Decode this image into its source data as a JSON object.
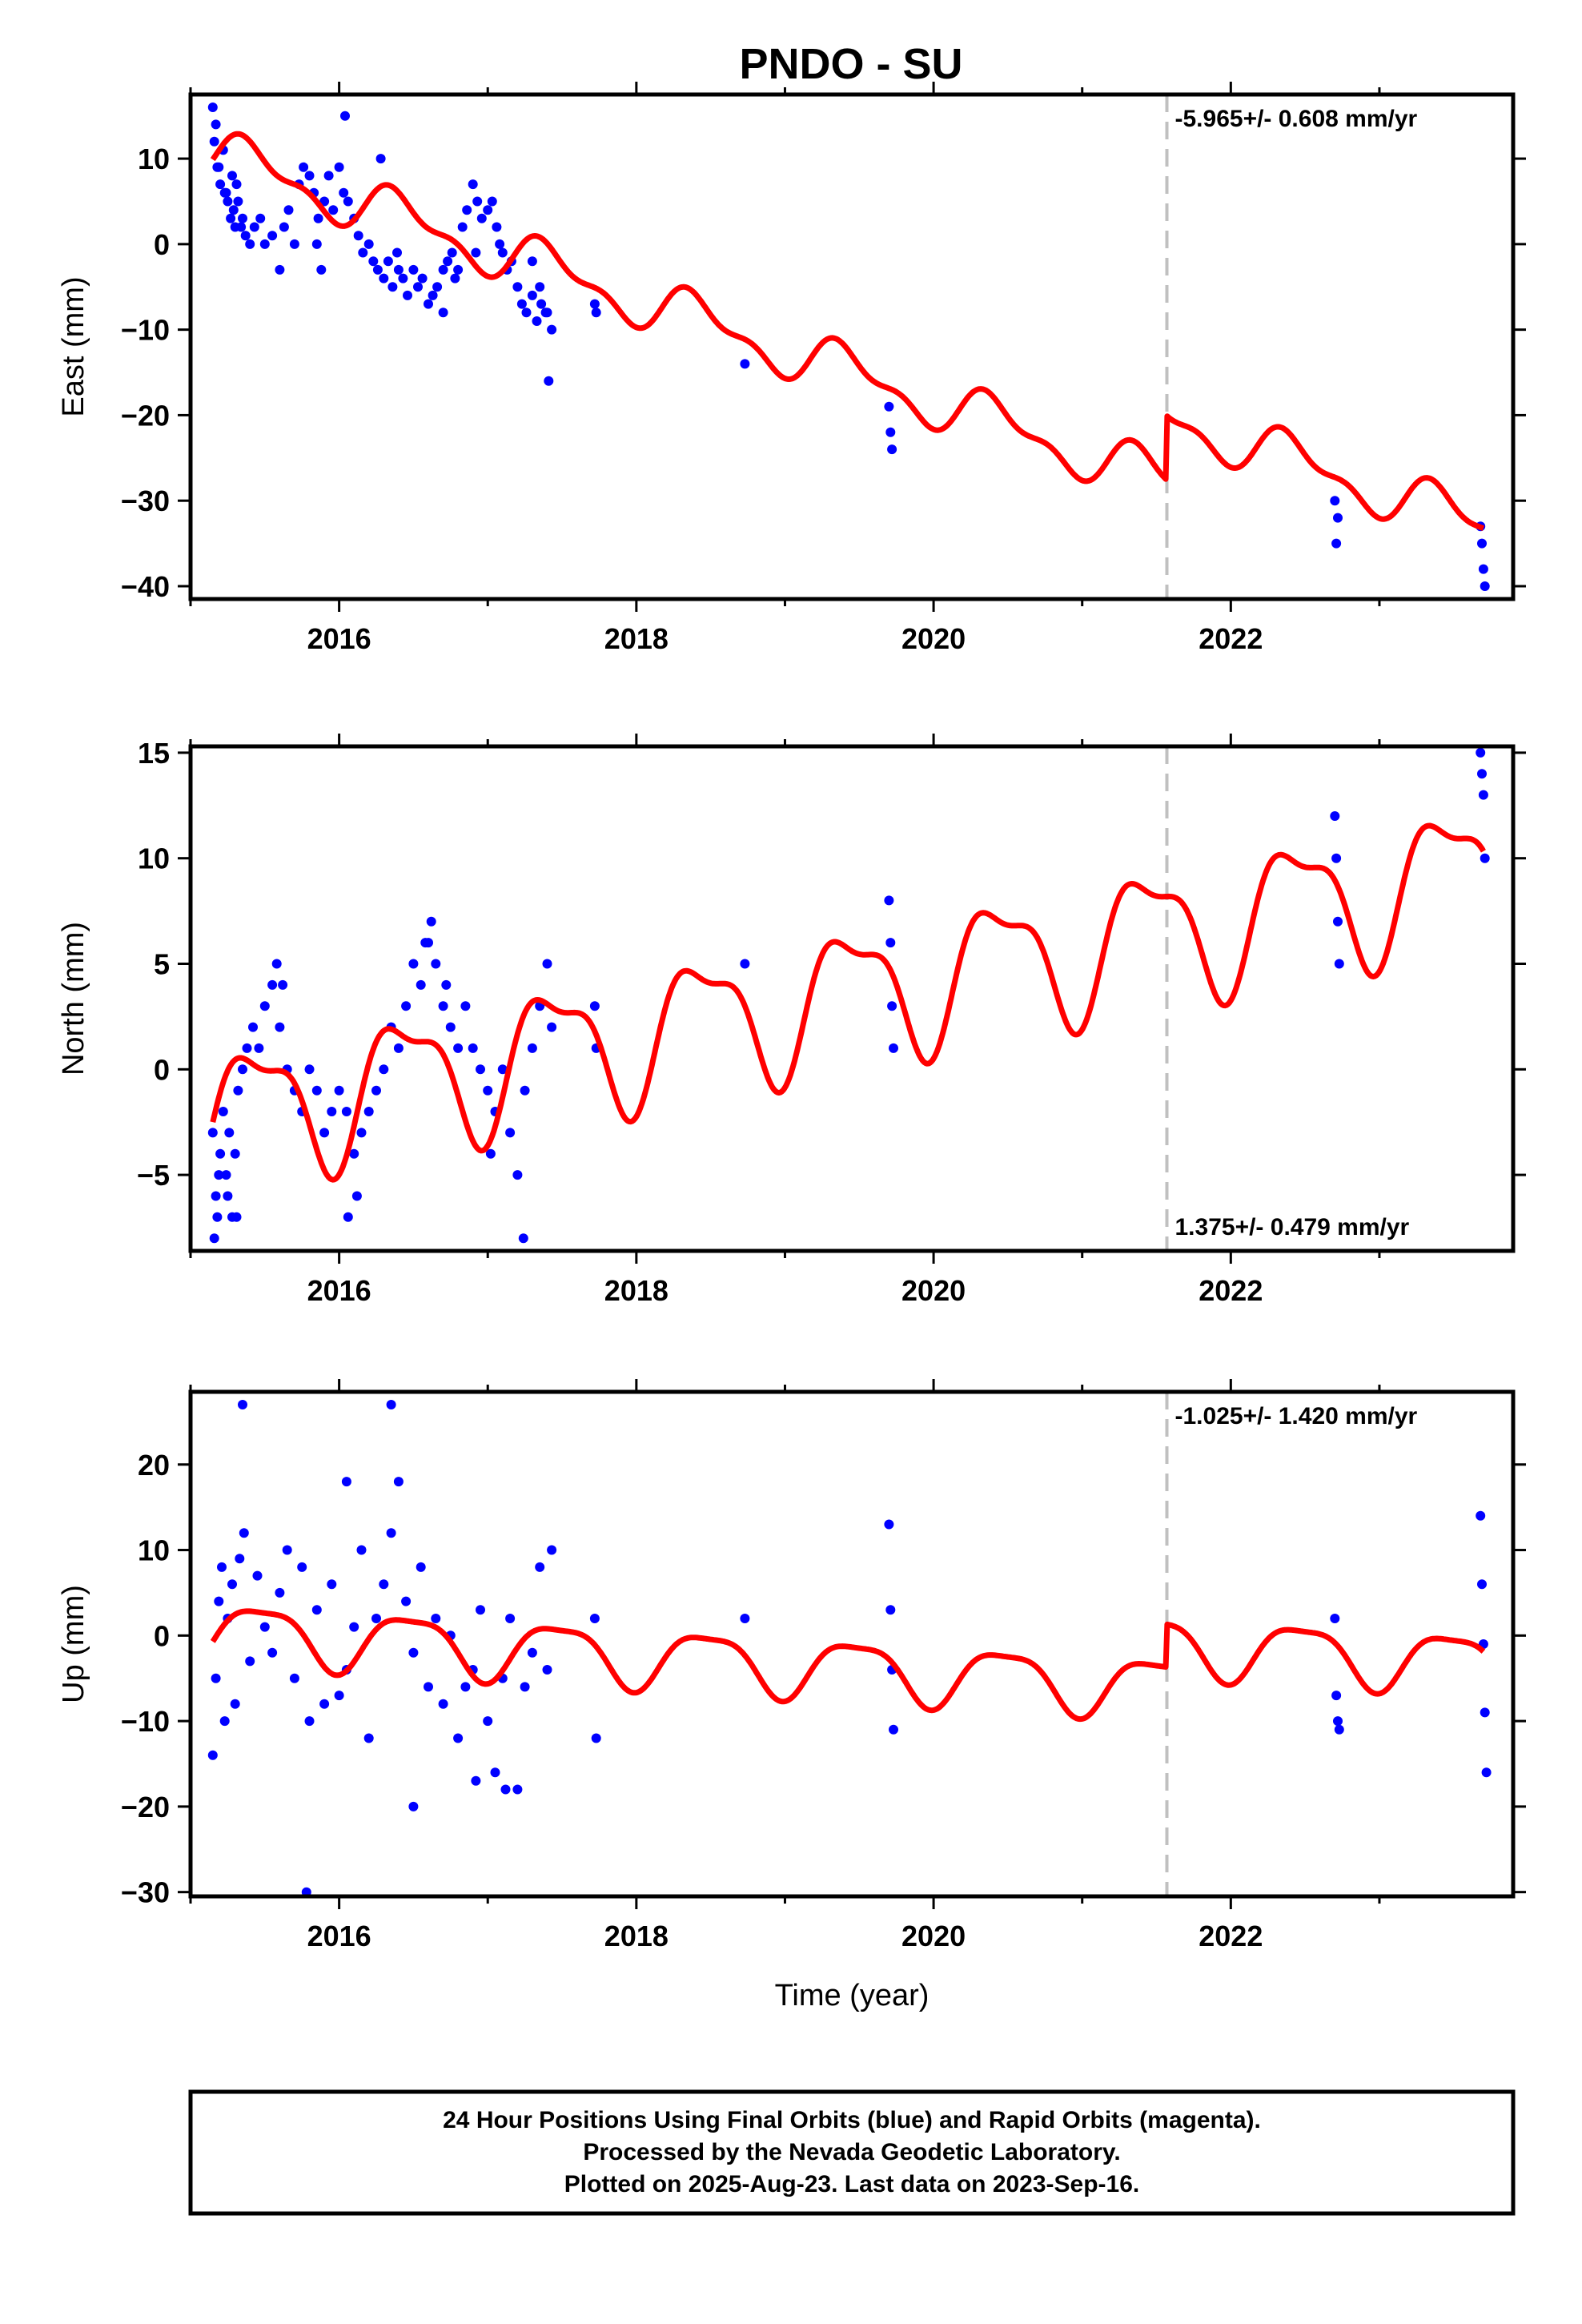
{
  "title": "PNDO - SU",
  "footer": {
    "lines": [
      "24 Hour Positions Using Final Orbits (blue) and Rapid Orbits (magenta).",
      "Processed by the Nevada Geodetic Laboratory.",
      "Plotted on 2025-Aug-23. Last data on 2023-Sep-16."
    ]
  },
  "colors": {
    "data_points": "#0000ff",
    "model_line": "#ff0000",
    "break_line": "#c0c0c0",
    "frame": "#000000"
  },
  "chart_data": [
    {
      "type": "scatter",
      "component": "East",
      "ylabel": "East (mm)",
      "xlabel": "",
      "xlim": [
        2015.0,
        2023.9
      ],
      "ylim": [
        -41.5,
        17.5
      ],
      "xticks": [
        2016,
        2018,
        2020,
        2022
      ],
      "yticks": [
        -40,
        -30,
        -20,
        -10,
        0,
        10
      ],
      "rate_label": "-5.965+/- 0.608 mm/yr",
      "rate_label_position": "top-right",
      "break_epoch": 2021.57,
      "model": {
        "rate_mm_per_yr": -5.965,
        "t_ref": 2015.15,
        "offset0": 10.5,
        "annual_sin": 2.6,
        "annual_cos": -0.2,
        "semiannual_sin": 1.2,
        "semiannual_cos": -0.4,
        "steps": [
          {
            "epoch": 2021.57,
            "size": 7.5
          }
        ],
        "t_start": 2015.15,
        "t_end": 2023.7
      },
      "series": [
        {
          "values_desc": "",
          "x": [
            2015.15,
            2015.17,
            2015.18,
            2015.2,
            2015.22,
            2015.23,
            2015.25,
            2015.27,
            2015.28,
            2015.3,
            2015.32,
            2015.35,
            2015.37,
            2015.4,
            2015.43,
            2015.47,
            2015.5,
            2015.55,
            2015.6,
            2015.63,
            2015.66,
            2015.7,
            2015.73,
            2015.76,
            2015.8,
            2015.83,
            2015.86,
            2015.9,
            2015.93,
            2015.96,
            2016.0,
            2016.03,
            2016.06,
            2016.1,
            2016.13,
            2016.16,
            2016.2,
            2016.23,
            2016.26,
            2016.3,
            2016.33,
            2016.36,
            2016.4,
            2016.43,
            2016.46,
            2016.5,
            2016.53,
            2016.56,
            2016.6,
            2016.63,
            2016.66,
            2016.7,
            2016.73,
            2016.76,
            2016.8,
            2016.83,
            2016.86,
            2016.9,
            2016.93,
            2016.96,
            2017.0,
            2017.03,
            2017.06,
            2017.1,
            2017.13,
            2017.16,
            2017.2,
            2017.23,
            2017.26,
            2017.3,
            2017.33,
            2017.36,
            2017.4,
            2017.43,
            2017.72,
            2017.73,
            2018.73,
            2019.7,
            2019.71,
            2019.72,
            2022.7,
            2022.71,
            2022.72,
            2023.68,
            2023.69,
            2023.7,
            2023.71,
            2015.16,
            2015.19,
            2015.24,
            2015.29,
            2015.31,
            2015.34,
            2015.85,
            2015.88,
            2016.04,
            2016.28,
            2016.39,
            2016.7,
            2016.78,
            2016.92,
            2017.08,
            2017.3,
            2017.35,
            2017.39,
            2017.41
          ],
          "y": [
            16,
            14,
            9,
            7,
            11,
            6,
            5,
            3,
            8,
            2,
            5,
            3,
            1,
            0,
            2,
            3,
            0,
            1,
            -3,
            2,
            4,
            0,
            7,
            9,
            8,
            6,
            3,
            5,
            8,
            4,
            9,
            6,
            5,
            3,
            1,
            -1,
            0,
            -2,
            -3,
            -4,
            -2,
            -5,
            -3,
            -4,
            -6,
            -3,
            -5,
            -4,
            -7,
            -6,
            -5,
            -8,
            -2,
            -1,
            -3,
            2,
            4,
            7,
            5,
            3,
            4,
            5,
            2,
            -1,
            -3,
            -2,
            -5,
            -7,
            -8,
            -6,
            -9,
            -7,
            -8,
            -10,
            -7,
            -8,
            -14,
            -19,
            -22,
            -24,
            -30,
            -35,
            -32,
            -33,
            -35,
            -38,
            -40,
            12,
            9,
            6,
            4,
            7,
            2,
            0,
            -3,
            15,
            10,
            -1,
            -3,
            -4,
            -1,
            0,
            -2,
            -5,
            -8,
            -16
          ]
        }
      ]
    },
    {
      "type": "scatter",
      "component": "North",
      "ylabel": "North (mm)",
      "xlabel": "",
      "xlim": [
        2015.0,
        2023.9
      ],
      "ylim": [
        -8.6,
        15.3
      ],
      "xticks": [
        2016,
        2018,
        2020,
        2022
      ],
      "yticks": [
        -5,
        0,
        5,
        10,
        15
      ],
      "rate_label": "1.375+/- 0.479 mm/yr",
      "rate_label_position": "bottom-right",
      "break_epoch": 2021.57,
      "model": {
        "rate_mm_per_yr": 1.375,
        "t_ref": 2015.15,
        "offset0": -2.3,
        "annual_sin": 2.9,
        "annual_cos": -0.8,
        "semiannual_sin": 0.9,
        "semiannual_cos": 0.6,
        "steps": [],
        "t_start": 2015.15,
        "t_end": 2023.7
      },
      "series": [
        {
          "values_desc": "",
          "x": [
            2015.15,
            2015.17,
            2015.18,
            2015.2,
            2015.22,
            2015.24,
            2015.26,
            2015.28,
            2015.3,
            2015.32,
            2015.35,
            2015.38,
            2015.42,
            2015.46,
            2015.5,
            2015.55,
            2015.58,
            2015.6,
            2015.65,
            2015.7,
            2015.75,
            2015.8,
            2015.85,
            2015.9,
            2015.95,
            2016.0,
            2016.05,
            2016.1,
            2016.15,
            2016.2,
            2016.25,
            2016.3,
            2016.35,
            2016.4,
            2016.45,
            2016.5,
            2016.55,
            2016.6,
            2016.65,
            2016.7,
            2016.75,
            2016.8,
            2016.85,
            2016.9,
            2016.95,
            2017.0,
            2017.05,
            2017.1,
            2017.15,
            2017.2,
            2017.25,
            2017.3,
            2017.35,
            2017.4,
            2017.43,
            2017.72,
            2017.73,
            2018.73,
            2019.7,
            2019.71,
            2019.72,
            2019.73,
            2022.7,
            2022.71,
            2022.72,
            2022.73,
            2023.68,
            2023.69,
            2023.7,
            2023.71,
            2015.16,
            2015.19,
            2015.25,
            2015.31,
            2015.62,
            2016.06,
            2016.12,
            2016.58,
            2016.62,
            2016.72,
            2017.02,
            2017.24
          ],
          "y": [
            -3,
            -6,
            -7,
            -4,
            -2,
            -5,
            -3,
            -7,
            -4,
            -1,
            0,
            1,
            2,
            1,
            3,
            4,
            5,
            2,
            0,
            -1,
            -2,
            0,
            -1,
            -3,
            -2,
            -1,
            -2,
            -4,
            -3,
            -2,
            -1,
            0,
            2,
            1,
            3,
            5,
            4,
            6,
            5,
            3,
            2,
            1,
            3,
            1,
            0,
            -1,
            -2,
            0,
            -3,
            -5,
            -1,
            1,
            3,
            5,
            2,
            3,
            1,
            5,
            8,
            6,
            3,
            1,
            12,
            10,
            7,
            5,
            15,
            14,
            13,
            10,
            -8,
            -5,
            -6,
            -7,
            4,
            -7,
            -6,
            6,
            7,
            4,
            -4,
            -8
          ]
        }
      ]
    },
    {
      "type": "scatter",
      "component": "Up",
      "ylabel": "Up (mm)",
      "xlabel": "Time (year)",
      "xlim": [
        2015.0,
        2023.9
      ],
      "ylim": [
        -30.5,
        28.5
      ],
      "xticks": [
        2016,
        2018,
        2020,
        2022
      ],
      "yticks": [
        -30,
        -20,
        -10,
        0,
        10,
        20
      ],
      "rate_label": "-1.025+/- 1.420 mm/yr",
      "rate_label_position": "top-right",
      "break_epoch": 2021.57,
      "model": {
        "rate_mm_per_yr": -1.025,
        "t_ref": 2015.15,
        "offset0": 0.5,
        "annual_sin": 3.0,
        "annual_cos": -1.6,
        "semiannual_sin": 0.8,
        "semiannual_cos": 0.4,
        "steps": [
          {
            "epoch": 2021.57,
            "size": 5.0
          }
        ],
        "t_start": 2015.15,
        "t_end": 2023.7
      },
      "series": [
        {
          "values_desc": "",
          "x": [
            2015.15,
            2015.17,
            2015.19,
            2015.21,
            2015.23,
            2015.25,
            2015.28,
            2015.3,
            2015.33,
            2015.36,
            2015.4,
            2015.45,
            2015.5,
            2015.55,
            2015.6,
            2015.65,
            2015.7,
            2015.75,
            2015.8,
            2015.85,
            2015.9,
            2015.95,
            2016.0,
            2016.05,
            2016.1,
            2016.15,
            2016.2,
            2016.25,
            2016.3,
            2016.35,
            2016.4,
            2016.45,
            2016.5,
            2016.55,
            2016.6,
            2016.65,
            2016.7,
            2016.75,
            2016.8,
            2016.85,
            2016.9,
            2016.95,
            2017.0,
            2017.05,
            2017.1,
            2017.15,
            2017.2,
            2017.25,
            2017.3,
            2017.35,
            2017.4,
            2017.43,
            2017.72,
            2017.73,
            2018.73,
            2019.7,
            2019.71,
            2019.72,
            2019.73,
            2022.7,
            2022.71,
            2022.72,
            2022.73,
            2023.68,
            2023.69,
            2023.7,
            2023.71,
            2023.72,
            2015.35,
            2015.78,
            2016.05,
            2016.35,
            2016.5,
            2016.92,
            2017.12
          ],
          "y": [
            -14,
            -5,
            4,
            8,
            -10,
            2,
            6,
            -8,
            9,
            12,
            -3,
            7,
            1,
            -2,
            5,
            10,
            -5,
            8,
            -10,
            3,
            -8,
            6,
            -7,
            -4,
            1,
            10,
            -12,
            2,
            6,
            12,
            18,
            4,
            -2,
            8,
            -6,
            2,
            -8,
            0,
            -12,
            -6,
            -4,
            3,
            -10,
            -16,
            -5,
            2,
            -18,
            -6,
            -2,
            8,
            -4,
            10,
            2,
            -12,
            2,
            13,
            3,
            -4,
            -11,
            2,
            -7,
            -10,
            -11,
            14,
            6,
            -1,
            -9,
            -16,
            27,
            -30,
            18,
            27,
            -20,
            -17,
            -18
          ]
        }
      ]
    }
  ]
}
